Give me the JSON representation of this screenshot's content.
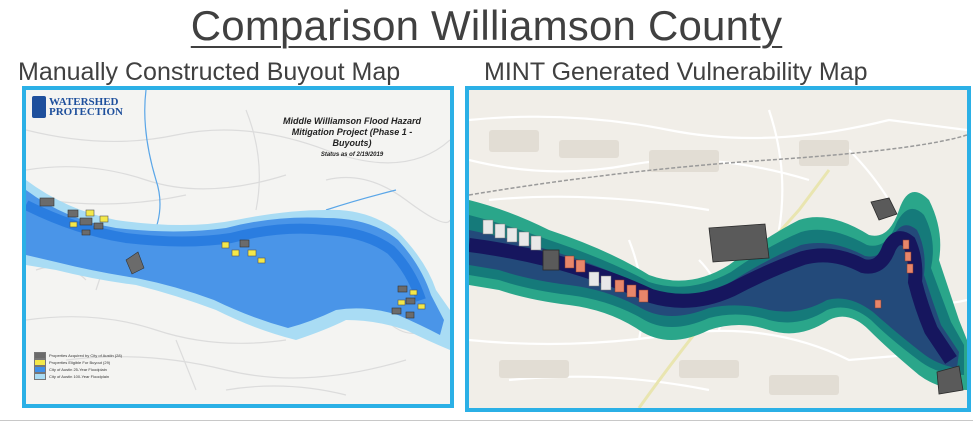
{
  "title": "Comparison Williamson County",
  "left_caption": "Manually Constructed Buyout Map",
  "right_caption": "MINT Generated Vulnerability Map",
  "left_map": {
    "logo_line1": "",
    "logo_line2": "WATERSHED",
    "logo_line3": "PROTECTION",
    "map_title": "Middle Williamson Flood Hazard Mitigation Project (Phase 1 - Buyouts)",
    "status": "Status as of 2/19/2019",
    "legend": [
      {
        "label": "Properties Acquired by City of Austin (28)",
        "color": "#6b6b6b"
      },
      {
        "label": "Properties Eligible For Buyout (29)",
        "color": "#f4e84a"
      },
      {
        "label": "City of Austin 25-Year Floodplain",
        "color": "#3f8fe8"
      },
      {
        "label": "City of Austin 100-Year Floodplain",
        "color": "#a9dcf4"
      }
    ]
  },
  "right_map": {
    "accent_water": "#1a1a6e",
    "accent_vuln_high": "#0f6e6e",
    "accent_vuln_low": "#1fa383",
    "buildings_at_risk_color": "#e8866a"
  },
  "colors": {
    "frame": "#2bb0e6",
    "heading": "#404040"
  }
}
